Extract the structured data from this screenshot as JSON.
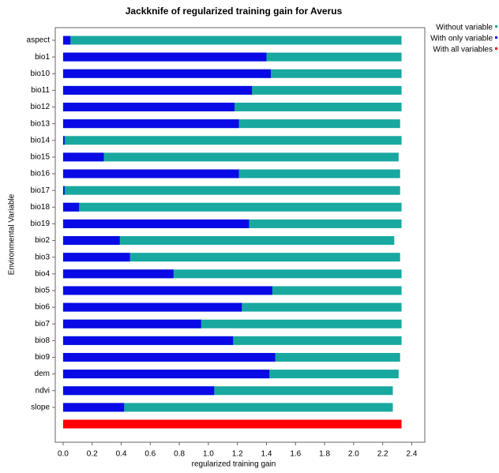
{
  "chart_data": {
    "type": "bar",
    "orientation": "horizontal",
    "title": "Jackknife of regularized training gain for Averus",
    "x_label": "regularized training gain",
    "y_label": "Environmental Variable",
    "categories": [
      "aspect",
      "bio1",
      "bio10",
      "bio11",
      "bio12",
      "bio13",
      "bio14",
      "bio15",
      "bio16",
      "bio17",
      "bio18",
      "bio19",
      "bio2",
      "bio3",
      "bio4",
      "bio5",
      "bio6",
      "bio7",
      "bio8",
      "bio9",
      "dem",
      "ndvi",
      "slope",
      null
    ],
    "series": [
      {
        "name": "Without variable",
        "color": "#18a8a0",
        "values": [
          2.33,
          2.33,
          2.33,
          2.33,
          2.33,
          2.32,
          2.33,
          2.31,
          2.32,
          2.32,
          2.33,
          2.33,
          2.28,
          2.32,
          2.33,
          2.33,
          2.33,
          2.33,
          2.33,
          2.32,
          2.31,
          2.27,
          2.27,
          null
        ]
      },
      {
        "name": "With only variable",
        "color": "#0a0ae6",
        "values": [
          0.05,
          1.4,
          1.43,
          1.3,
          1.18,
          1.21,
          0.01,
          0.28,
          1.21,
          0.01,
          0.11,
          1.28,
          0.39,
          0.46,
          0.76,
          1.44,
          1.23,
          0.95,
          1.17,
          1.46,
          1.42,
          1.04,
          0.42,
          null
        ]
      },
      {
        "name": "With all variables",
        "color": "#ff0000",
        "values": [
          null,
          null,
          null,
          null,
          null,
          null,
          null,
          null,
          null,
          null,
          null,
          null,
          null,
          null,
          null,
          null,
          null,
          null,
          null,
          null,
          null,
          null,
          null,
          2.33
        ]
      }
    ],
    "xlim": [
      -0.054,
      2.49
    ],
    "xticks": [
      {
        "value": 0,
        "label": "0.0"
      },
      0.2,
      0.4,
      0.6,
      0.8,
      {
        "value": 1,
        "label": "1.0"
      },
      1.2,
      1.4,
      1.6,
      1.8,
      {
        "value": 2,
        "label": "2.0"
      },
      2.2,
      2.4
    ],
    "grid": false
  }
}
